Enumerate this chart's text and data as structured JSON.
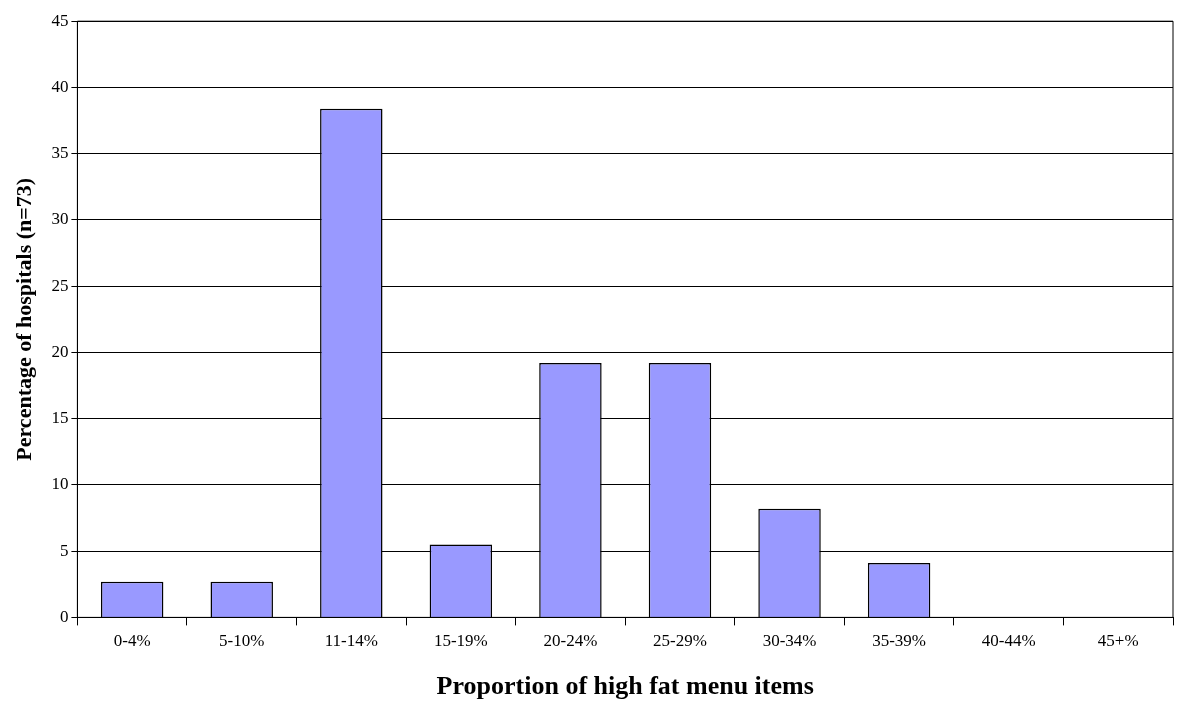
{
  "chart_data": {
    "type": "bar",
    "xlabel": "Proportion of high fat menu items",
    "ylabel": "Percentage of hospitals (n=73)",
    "categories": [
      "0-4%",
      "5-10%",
      "11-14%",
      "15-19%",
      "20-24%",
      "25-29%",
      "30-34%",
      "35-39%",
      "40-44%",
      "45+%"
    ],
    "values": [
      2.7,
      2.7,
      38.4,
      5.5,
      19.2,
      19.2,
      8.2,
      4.1,
      0,
      0
    ],
    "color": "#9999ff",
    "ylim": [
      0,
      45
    ],
    "yticks": [
      0,
      5,
      10,
      15,
      20,
      25,
      30,
      35,
      40,
      45
    ],
    "grid": "y",
    "legend": false
  }
}
